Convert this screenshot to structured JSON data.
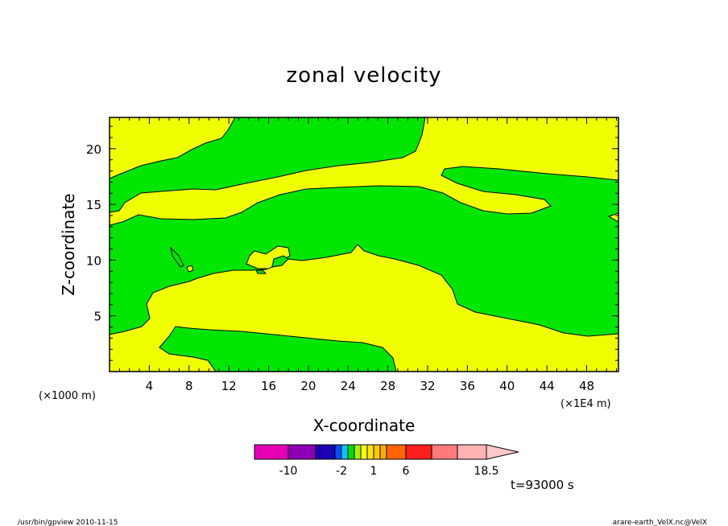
{
  "chart_data": {
    "type": "heatmap",
    "title": "zonal velocity",
    "xlabel": "X-coordinate",
    "ylabel": "Z-coordinate",
    "x_unit_left": "(×1000 m)",
    "x_unit_right": "(×1E4 m)",
    "x_ticks": [
      4,
      8,
      12,
      16,
      20,
      24,
      28,
      32,
      36,
      40,
      44,
      48
    ],
    "y_ticks": [
      5,
      10,
      15,
      20
    ],
    "xlim": [
      0,
      51.2
    ],
    "ylim": [
      0,
      22.8
    ],
    "time_label": "t=93000 s",
    "colorbar": {
      "labels": [
        "-10",
        "-2",
        "1",
        "6",
        "18.5"
      ],
      "label_values": [
        -10,
        -2,
        1,
        6,
        18.5
      ],
      "boxes": [
        {
          "from": -14,
          "to": -10,
          "color": "#e600b4"
        },
        {
          "from": -10,
          "to": -6,
          "color": "#8c00b4"
        },
        {
          "from": -6,
          "to": -3,
          "color": "#1e00b4"
        },
        {
          "from": -3,
          "to": -2,
          "color": "#0050ff"
        },
        {
          "from": -2,
          "to": -1.5,
          "color": "#00c8ff"
        },
        {
          "from": -1.5,
          "to": -1,
          "color": "#00dc00"
        },
        {
          "from": -1,
          "to": -0.5,
          "color": "#aaf000"
        },
        {
          "from": -0.5,
          "to": 0,
          "color": "#ffff00"
        },
        {
          "from": 0,
          "to": 1,
          "color": "#ffe600"
        },
        {
          "from": 1,
          "to": 2,
          "color": "#ffc800"
        },
        {
          "from": 2,
          "to": 3,
          "color": "#ffaa00"
        },
        {
          "from": 3,
          "to": 6,
          "color": "#ff6400"
        },
        {
          "from": 6,
          "to": 10,
          "color": "#ff1e1e"
        },
        {
          "from": 10,
          "to": 14,
          "color": "#ff7a7a"
        },
        {
          "from": 14,
          "to": 18.5,
          "color": "#ffb4b4"
        },
        {
          "from": 18.5,
          "to": 22,
          "color": "#ffc8c8",
          "arrow": true
        }
      ]
    },
    "field_colors": {
      "yellow": "#f0ff00",
      "green": "#00e600"
    }
  },
  "footer": {
    "left": "/usr/bin/gpview   2010-11-15",
    "right": "arare-earth_VelX.nc@VelX"
  }
}
